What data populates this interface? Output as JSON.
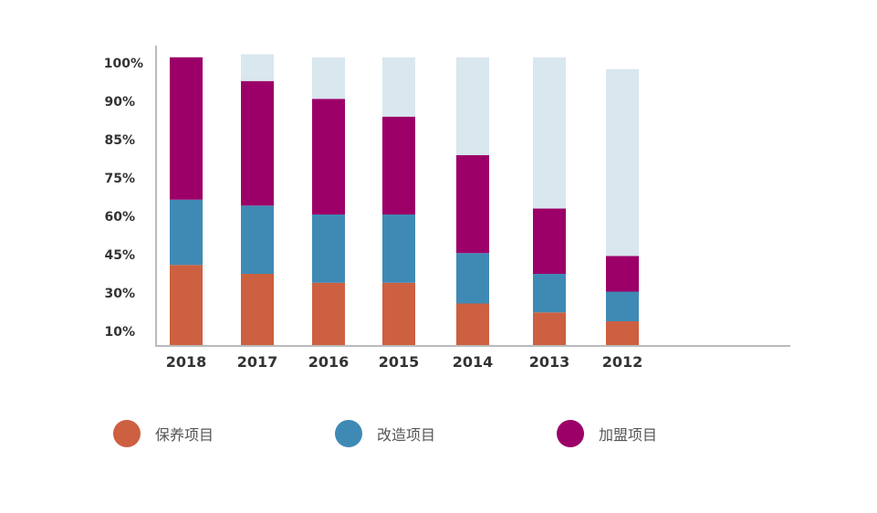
{
  "chart_data": {
    "type": "bar",
    "stacked": true,
    "categories": [
      "2018",
      "2017",
      "2016",
      "2015",
      "2014",
      "2013",
      "2012"
    ],
    "y_tick_labels": [
      "10%",
      "30%",
      "45%",
      "60%",
      "75%",
      "85%",
      "90%",
      "100%"
    ],
    "series": [
      {
        "name": "保养项目",
        "color": "#cc6040",
        "values": [
          27,
          24,
          21,
          21,
          14,
          11,
          8
        ]
      },
      {
        "name": "改造项目",
        "color": "#3f8ab5",
        "values": [
          22,
          23,
          23,
          23,
          17,
          13,
          10
        ]
      },
      {
        "name": "加盟项目",
        "color": "#9c0068",
        "values": [
          48,
          42,
          39,
          33,
          33,
          22,
          12
        ]
      },
      {
        "name": "",
        "color": "#d9e7ef",
        "values": [
          0,
          9,
          14,
          20,
          33,
          51,
          63
        ]
      }
    ],
    "grid": false,
    "legend_position": "bottom"
  }
}
